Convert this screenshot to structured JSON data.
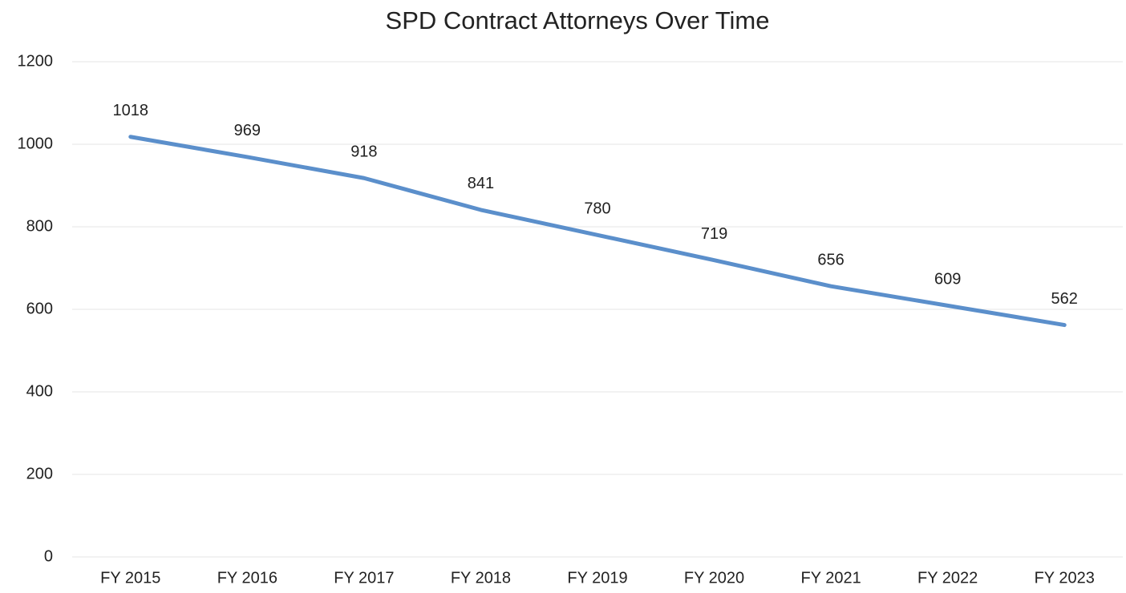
{
  "chart_data": {
    "type": "line",
    "title": "SPD Contract Attorneys Over Time",
    "categories": [
      "FY 2015",
      "FY 2016",
      "FY 2017",
      "FY 2018",
      "FY 2019",
      "FY 2020",
      "FY 2021",
      "FY 2022",
      "FY 2023"
    ],
    "values": [
      1018,
      969,
      918,
      841,
      780,
      719,
      656,
      609,
      562
    ],
    "color": "#5b8fcb",
    "ylim": [
      0,
      1200
    ],
    "yticks": [
      0,
      200,
      400,
      600,
      800,
      1000,
      1200
    ],
    "grid": true
  }
}
